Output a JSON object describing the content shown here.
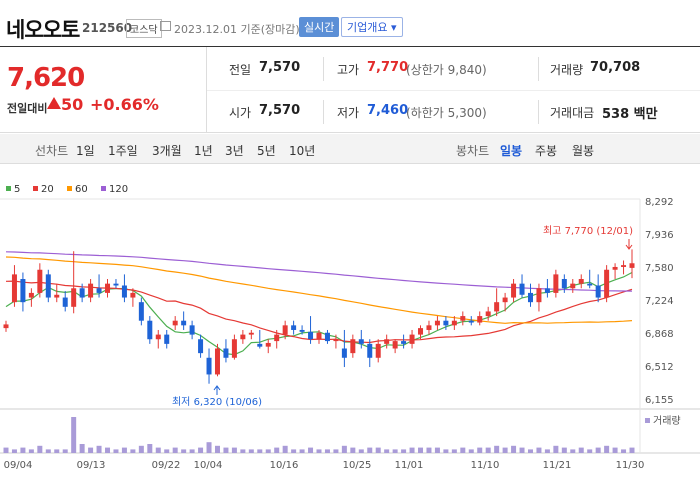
{
  "header": {
    "name": "네오오토",
    "code": "212560",
    "market": "코스닥",
    "date_text": "2023.12.01 기준(장마감)",
    "realtime": "실시간",
    "company": "기업개요 ▾"
  },
  "price": {
    "current": "7,620",
    "diff_label": "전일대비",
    "diff": "50",
    "pct": "+0.66%"
  },
  "stats": {
    "prev_label": "전일",
    "prev": "7,570",
    "high_label": "고가",
    "high": "7,770",
    "upper": "(상한가 9,840)",
    "vol_label": "거래량",
    "vol": "70,708",
    "open_label": "시가",
    "open": "7,570",
    "low_label": "저가",
    "low": "7,460",
    "lower": "(하한가 5,300)",
    "amt_label": "거래대금",
    "amt": "538 백만"
  },
  "toolbar": {
    "line_label": "선차트",
    "ranges": [
      "1일",
      "1주일",
      "3개월",
      "1년",
      "3년",
      "5년",
      "10년"
    ],
    "candle_label": "봉차트",
    "candles": [
      "일봉",
      "주봉",
      "월봉"
    ]
  },
  "chart_data": {
    "type": "candlestick",
    "legend": [
      {
        "name": "5",
        "color": "#4caf50"
      },
      {
        "name": "20",
        "color": "#e53935"
      },
      {
        "name": "60",
        "color": "#ff9800"
      },
      {
        "name": "120",
        "color": "#9c5fd4"
      }
    ],
    "y_ticks": [
      "8,292",
      "7,936",
      "7,580",
      "7,224",
      "6,868",
      "6,512",
      "6,155"
    ],
    "y_range": [
      6155,
      8292
    ],
    "x_labels": [
      "09/04",
      "09/13",
      "09/22",
      "10/04",
      "10/16",
      "10/25",
      "11/01",
      "11/10",
      "11/21",
      "11/30"
    ],
    "annotations": {
      "high": "최고 7,770 (12/01)",
      "low": "최저 6,320 (10/06)"
    },
    "volume_label": "거래량",
    "candles": [
      [
        6920,
        7000,
        6880,
        6960
      ],
      [
        7200,
        7600,
        7150,
        7500
      ],
      [
        7450,
        7520,
        7100,
        7200
      ],
      [
        7250,
        7350,
        7150,
        7300
      ],
      [
        7300,
        7620,
        7250,
        7550
      ],
      [
        7500,
        7550,
        7200,
        7250
      ],
      [
        7250,
        7400,
        7200,
        7280
      ],
      [
        7250,
        7320,
        7100,
        7150
      ],
      [
        7150,
        7750,
        7080,
        7350
      ],
      [
        7350,
        7400,
        7200,
        7250
      ],
      [
        7250,
        7450,
        7200,
        7400
      ],
      [
        7350,
        7500,
        7250,
        7300
      ],
      [
        7300,
        7450,
        7250,
        7400
      ],
      [
        7400,
        7450,
        7350,
        7380
      ],
      [
        7380,
        7500,
        7200,
        7250
      ],
      [
        7250,
        7350,
        7150,
        7300
      ],
      [
        7200,
        7250,
        6950,
        7000
      ],
      [
        7000,
        7050,
        6750,
        6800
      ],
      [
        6800,
        6900,
        6700,
        6850
      ],
      [
        6850,
        6900,
        6700,
        6750
      ],
      [
        6950,
        7050,
        6900,
        7000
      ],
      [
        7000,
        7100,
        6900,
        6950
      ],
      [
        6950,
        7000,
        6800,
        6850
      ],
      [
        6800,
        6850,
        6600,
        6650
      ],
      [
        6600,
        6700,
        6320,
        6420
      ],
      [
        6420,
        6750,
        6400,
        6700
      ],
      [
        6700,
        6800,
        6550,
        6600
      ],
      [
        6600,
        6850,
        6580,
        6800
      ],
      [
        6800,
        6900,
        6750,
        6850
      ],
      [
        6850,
        6900,
        6800,
        6870
      ],
      [
        6750,
        6900,
        6700,
        6720
      ],
      [
        6720,
        6800,
        6650,
        6760
      ],
      [
        6780,
        6900,
        6700,
        6850
      ],
      [
        6850,
        7000,
        6800,
        6950
      ],
      [
        6950,
        7000,
        6850,
        6900
      ],
      [
        6900,
        6950,
        6850,
        6880
      ],
      [
        6880,
        7050,
        6750,
        6800
      ],
      [
        6800,
        6900,
        6750,
        6870
      ],
      [
        6870,
        6900,
        6750,
        6780
      ],
      [
        6780,
        6850,
        6700,
        6800
      ],
      [
        6700,
        6900,
        6500,
        6600
      ],
      [
        6650,
        6850,
        6600,
        6800
      ],
      [
        6800,
        6900,
        6700,
        6750
      ],
      [
        6750,
        6800,
        6500,
        6600
      ],
      [
        6600,
        6800,
        6550,
        6750
      ],
      [
        6750,
        6850,
        6700,
        6800
      ],
      [
        6700,
        6800,
        6650,
        6780
      ],
      [
        6780,
        6850,
        6700,
        6750
      ],
      [
        6750,
        6900,
        6700,
        6850
      ],
      [
        6850,
        6950,
        6800,
        6920
      ],
      [
        6900,
        7000,
        6850,
        6950
      ],
      [
        6950,
        7050,
        6900,
        7000
      ],
      [
        7000,
        7050,
        6900,
        6950
      ],
      [
        6950,
        7050,
        6900,
        7000
      ],
      [
        7000,
        7100,
        6950,
        7050
      ],
      [
        7000,
        7050,
        6950,
        6980
      ],
      [
        6980,
        7100,
        6950,
        7050
      ],
      [
        7050,
        7150,
        7000,
        7100
      ],
      [
        7100,
        7350,
        7050,
        7200
      ],
      [
        7200,
        7300,
        7100,
        7250
      ],
      [
        7250,
        7450,
        7200,
        7400
      ],
      [
        7400,
        7500,
        7250,
        7280
      ],
      [
        7300,
        7400,
        7150,
        7200
      ],
      [
        7200,
        7400,
        7100,
        7350
      ],
      [
        7350,
        7450,
        7250,
        7300
      ],
      [
        7300,
        7550,
        7250,
        7500
      ],
      [
        7450,
        7500,
        7300,
        7350
      ],
      [
        7350,
        7450,
        7300,
        7400
      ],
      [
        7400,
        7500,
        7350,
        7450
      ],
      [
        7400,
        7550,
        7350,
        7380
      ],
      [
        7380,
        7500,
        7200,
        7250
      ],
      [
        7250,
        7600,
        7200,
        7550
      ],
      [
        7550,
        7620,
        7450,
        7580
      ],
      [
        7580,
        7650,
        7500,
        7600
      ],
      [
        7570,
        7770,
        7460,
        7620
      ]
    ]
  }
}
